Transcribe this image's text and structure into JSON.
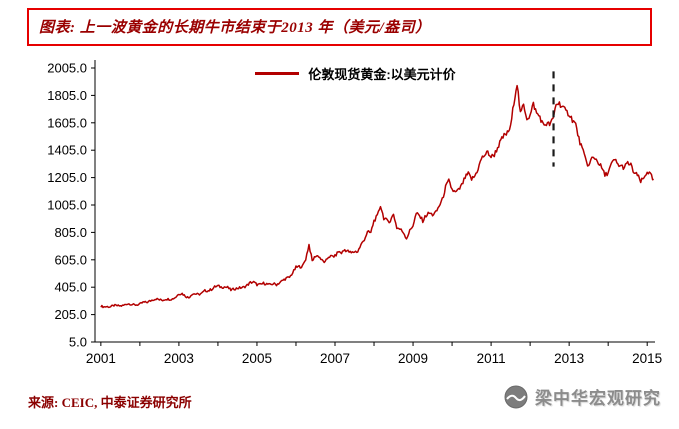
{
  "header": {
    "title": "图表: 上一波黄金的长期牛市结束于2013 年（美元/盎司）"
  },
  "legend": {
    "label": "伦敦现货黄金:以美元计价"
  },
  "footer": {
    "source": "来源: CEIC, 中泰证券研究所",
    "watermark": "梁中华宏观研究"
  },
  "colors": {
    "line": "#b20000",
    "title_border": "#e60000",
    "title_text": "#9a0000",
    "source_text": "#8b0000",
    "watermark_text": "#8c8c8c",
    "axis": "#000000",
    "marker_line": "#1a1a1a"
  },
  "chart_data": {
    "type": "line",
    "title": "上一波黄金的长期牛市结束于2013 年（美元/盎司）",
    "xlabel": "",
    "ylabel": "",
    "xlim": [
      2000.85,
      2015.2
    ],
    "ylim": [
      5,
      2005
    ],
    "yticks": [
      5,
      205,
      405,
      605,
      805,
      1005,
      1205,
      1405,
      1605,
      1805,
      2005
    ],
    "xticks": [
      2001,
      2003,
      2005,
      2007,
      2009,
      2011,
      2013,
      2015
    ],
    "grid": false,
    "legend_position": "top-center",
    "marker": {
      "type": "dashed-vline",
      "x": 2012.6,
      "y_from": 1285,
      "y_to": 1980
    },
    "series": [
      {
        "name": "伦敦现货黄金:以美元计价",
        "color": "#b20000",
        "x_start_year": 2001.0,
        "points_per_year": 12,
        "values": [
          266,
          262,
          263,
          261,
          272,
          270,
          268,
          272,
          284,
          283,
          276,
          276,
          281,
          295,
          294,
          303,
          314,
          321,
          313,
          310,
          319,
          317,
          319,
          333,
          357,
          359,
          340,
          328,
          355,
          357,
          351,
          360,
          379,
          379,
          389,
          407,
          414,
          405,
          407,
          403,
          384,
          392,
          398,
          401,
          405,
          420,
          439,
          442,
          424,
          423,
          434,
          429,
          422,
          431,
          424,
          438,
          456,
          470,
          477,
          510,
          550,
          555,
          557,
          611,
          715,
          596,
          634,
          632,
          599,
          586,
          628,
          630,
          631,
          665,
          655,
          679,
          667,
          655,
          665,
          665,
          713,
          755,
          806,
          803,
          890,
          922,
          1002,
          910,
          889,
          889,
          940,
          839,
          829,
          807,
          761,
          816,
          858,
          943,
          924,
          890,
          929,
          946,
          934,
          949,
          997,
          1043,
          1135,
          1180,
          1118,
          1095,
          1113,
          1149,
          1205,
          1233,
          1193,
          1216,
          1271,
          1342,
          1370,
          1390,
          1356,
          1373,
          1424,
          1473,
          1511,
          1529,
          1573,
          1757,
          1895,
          1666,
          1739,
          1640,
          1656,
          1743,
          1674,
          1650,
          1589,
          1598,
          1594,
          1626,
          1744,
          1747,
          1721,
          1685,
          1671,
          1628,
          1593,
          1487,
          1414,
          1343,
          1286,
          1347,
          1348,
          1316,
          1276,
          1221,
          1244,
          1301,
          1336,
          1299,
          1288,
          1279,
          1311,
          1295,
          1237,
          1222,
          1176,
          1200,
          1251,
          1227,
          1178
        ]
      }
    ]
  }
}
